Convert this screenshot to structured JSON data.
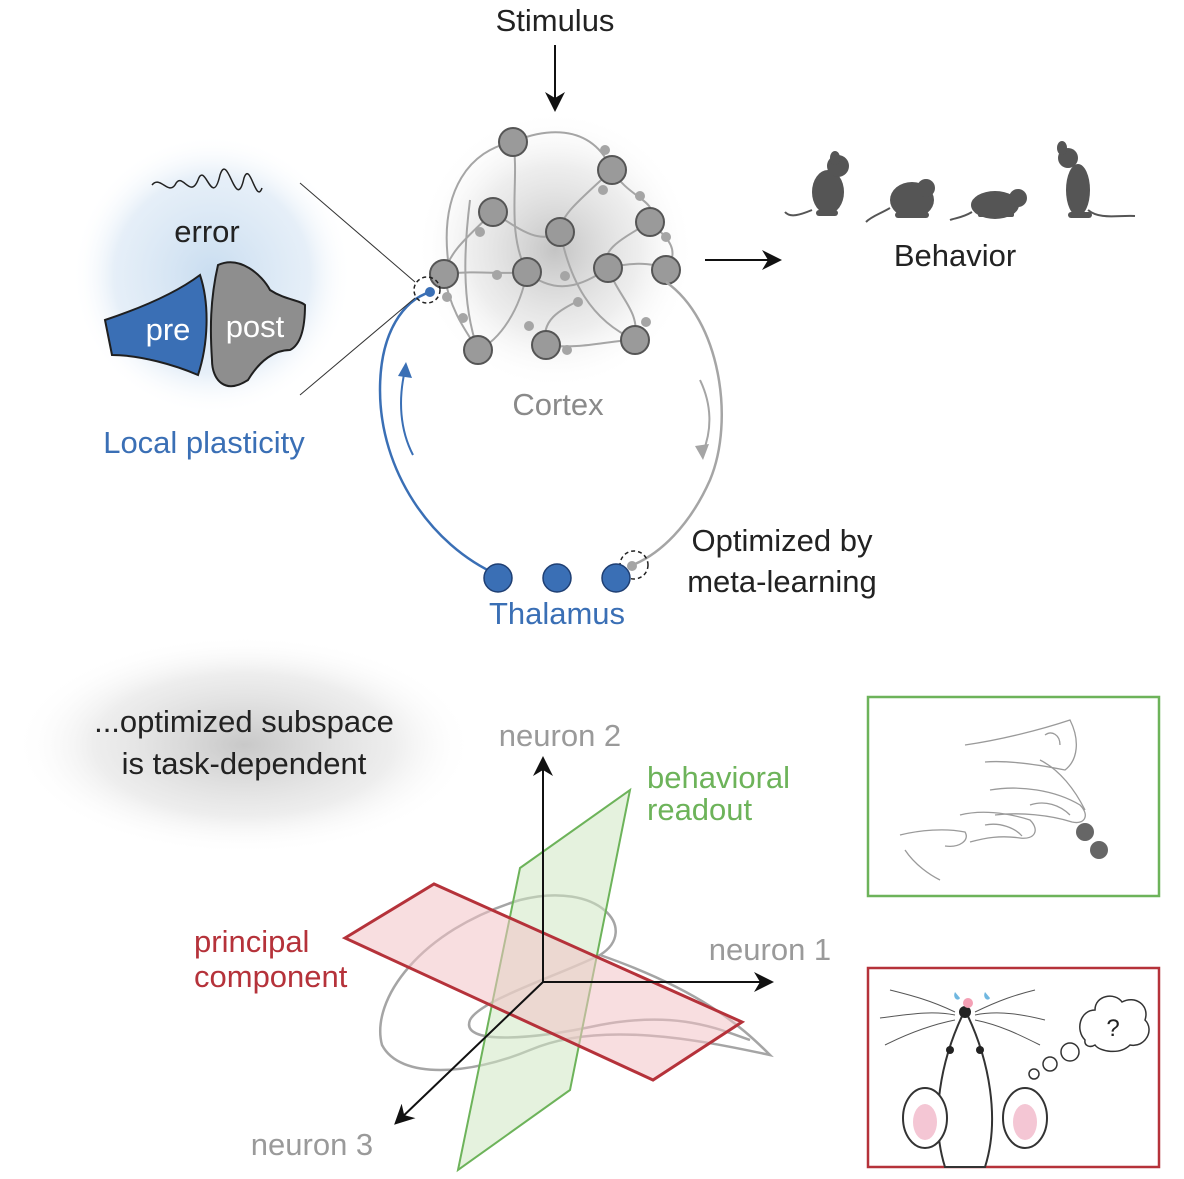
{
  "top": {
    "stimulus": "Stimulus",
    "behavior": "Behavior",
    "cortex": "Cortex",
    "thalamus": "Thalamus",
    "optimized_line1": "Optimized by",
    "optimized_line2": "meta-learning",
    "local_plasticity": "Local plasticity",
    "error": "error",
    "pre": "pre",
    "post": "post"
  },
  "bottom": {
    "subspace_line1": "...optimized subspace",
    "subspace_line2": "is task-dependent",
    "neuron1": "neuron 1",
    "neuron2": "neuron 2",
    "neuron3": "neuron 3",
    "behavioral_line1": "behavioral",
    "behavioral_line2": "readout",
    "principal_line1": "principal",
    "principal_line2": "component",
    "question": "?"
  },
  "colors": {
    "blue": "#3a6fb5",
    "gray_node": "#9a9a9a",
    "green": "#6db35a",
    "red": "#b5323a",
    "text_gray": "#8a8a8a"
  }
}
